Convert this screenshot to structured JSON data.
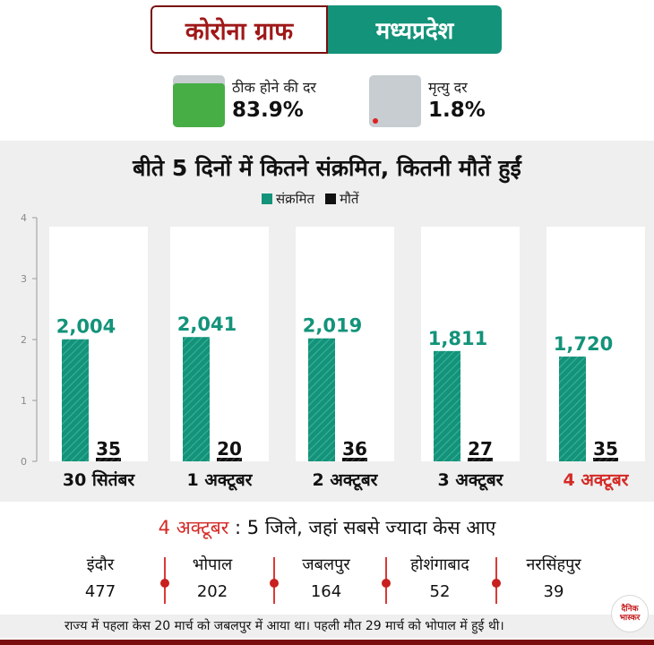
{
  "header": {
    "title_left": "कोरोना ग्राफ",
    "title_right": "मध्यप्रदेश"
  },
  "kpis": {
    "recovery": {
      "label": "ठीक होने की दर",
      "value": "83.9%",
      "fraction": 0.839,
      "color": "#47ae45"
    },
    "death": {
      "label": "मृत्यु दर",
      "value": "1.8%",
      "fraction": 0.018,
      "color": "#e0201f"
    }
  },
  "chart_data": {
    "type": "bar",
    "title": "बीते 5 दिनों में कितने संक्रमित, कितनी मौतें हुईं",
    "categories": [
      "30 सितंबर",
      "1 अक्टूबर",
      "2 अक्टूबर",
      "3 अक्टूबर",
      "4 अक्टूबर"
    ],
    "highlight_category": "4 अक्टूबर",
    "series": [
      {
        "name": "संक्रमित",
        "values": [
          2004,
          2041,
          2019,
          1811,
          1720
        ],
        "labels": [
          "2,004",
          "2,041",
          "2,019",
          "1,811",
          "1,720"
        ],
        "color": "#13937a"
      },
      {
        "name": "मौतें",
        "values": [
          35,
          20,
          36,
          27,
          35
        ],
        "labels": [
          "35",
          "20",
          "36",
          "27",
          "35"
        ],
        "color": "#111111"
      }
    ],
    "y_ticks": [
      "0",
      "1",
      "2",
      "3",
      "4"
    ],
    "ylim": [
      0,
      4000
    ],
    "xlabel": "",
    "ylabel": "",
    "grid": false,
    "legend": "top-center"
  },
  "districts": {
    "title_date": "4 अक्टूबर",
    "title_rest": " : 5 जिले, जहां सबसे ज्यादा केस आए",
    "items": [
      {
        "name": "इंदौर",
        "count": "477"
      },
      {
        "name": "भोपाल",
        "count": "202"
      },
      {
        "name": "जबलपुर",
        "count": "164"
      },
      {
        "name": "होशंगाबाद",
        "count": "52"
      },
      {
        "name": "नरसिंहपुर",
        "count": "39"
      }
    ]
  },
  "footnote": "राज्य में पहला केस 20 मार्च को जबलपुर में आया था। पहली मौत 29 मार्च को भोपाल में हुई थी।",
  "logo": {
    "line1": "दैनिक",
    "line2": "भास्कर"
  },
  "colors": {
    "accent": "#13937a",
    "brand": "#7a0d0d",
    "highlight": "#d42a26"
  }
}
